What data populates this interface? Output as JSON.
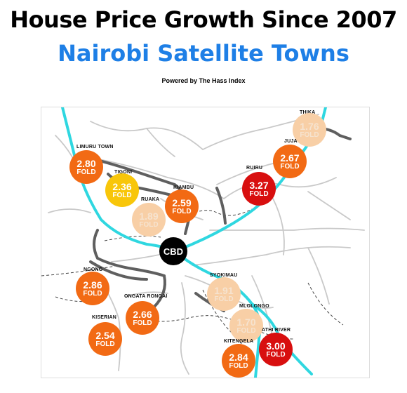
{
  "header": {
    "title": "House Price Growth Since 2007",
    "subtitle": "Nairobi Satellite Towns",
    "byline": "Powered by The Hass Index"
  },
  "map": {
    "center_label": "CBD",
    "unit": "FOLD",
    "towns": [
      {
        "name": "THIKA",
        "value": "1.76",
        "color": "#f8cfa6",
        "text": "light"
      },
      {
        "name": "JUJA",
        "value": "2.67",
        "color": "#f26a14",
        "text": "white"
      },
      {
        "name": "RUIRU",
        "value": "3.27",
        "color": "#d80f0f",
        "text": "white"
      },
      {
        "name": "LIMURU TOWN",
        "value": "2.80",
        "color": "#f26a14",
        "text": "white"
      },
      {
        "name": "TIGONI",
        "value": "2.36",
        "color": "#f8c60a",
        "text": "white"
      },
      {
        "name": "KIAMBU",
        "value": "2.59",
        "color": "#f26a14",
        "text": "white"
      },
      {
        "name": "RUAKA",
        "value": "1.89",
        "color": "#f8cfa6",
        "text": "light"
      },
      {
        "name": "NGONG",
        "value": "2.86",
        "color": "#f26a14",
        "text": "white"
      },
      {
        "name": "SYOKIMAU",
        "value": "1.91",
        "color": "#f8cfa6",
        "text": "light"
      },
      {
        "name": "ONGATA RONGAI",
        "value": "2.66",
        "color": "#f26a14",
        "text": "white"
      },
      {
        "name": "MLOLONGO",
        "value": "1.70",
        "color": "#f8cfa6",
        "text": "light"
      },
      {
        "name": "KISERIAN",
        "value": "2.54",
        "color": "#f26a14",
        "text": "white"
      },
      {
        "name": "ATHI RIVER",
        "value": "3.00",
        "color": "#d80f0f",
        "text": "white"
      },
      {
        "name": "KITENGELA",
        "value": "2.84",
        "color": "#f26a14",
        "text": "white"
      }
    ]
  }
}
